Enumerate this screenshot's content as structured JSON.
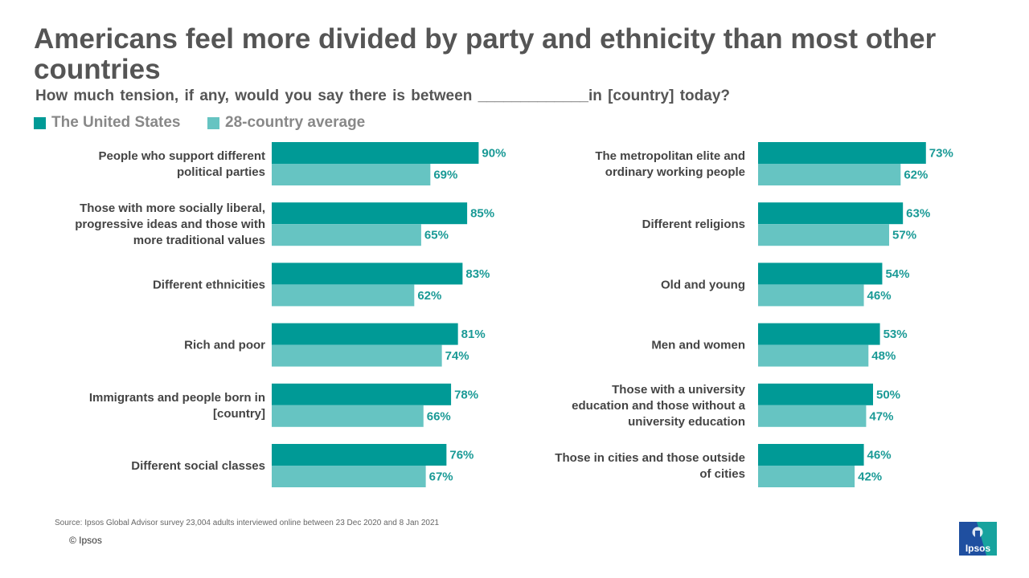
{
  "title": "Americans feel more divided by party and ethnicity than most other countries",
  "subtitle": "How much tension, if any, would you say there is between _____________in [country] today?",
  "colors": {
    "us": "#009a96",
    "average": "#66c4c2",
    "value_text": "#1a9a96"
  },
  "chart_data": {
    "type": "bar",
    "orientation": "horizontal",
    "unit": "%",
    "xlim": [
      0,
      100
    ],
    "grid": false,
    "legend": "top-left",
    "series_names": [
      "The United States",
      "28-country average"
    ],
    "panels": [
      {
        "categories": [
          "People who support different political parties",
          "Those with more socially liberal, progressive ideas and those with more traditional values",
          "Different ethnicities",
          "Rich and poor",
          "Immigrants and people born in [country]",
          "Different social classes"
        ],
        "label_lines": [
          [
            "People who support different",
            "political parties"
          ],
          [
            "Those with more socially liberal,",
            "progressive ideas and those with",
            "more traditional values"
          ],
          [
            "Different ethnicities"
          ],
          [
            "Rich and poor"
          ],
          [
            "Immigrants and people born in",
            "[country]"
          ],
          [
            "Different social classes"
          ]
        ],
        "series": [
          {
            "name": "The United States",
            "values": [
              90,
              85,
              83,
              81,
              78,
              76
            ]
          },
          {
            "name": "28-country average",
            "values": [
              69,
              65,
              62,
              74,
              66,
              67
            ]
          }
        ]
      },
      {
        "categories": [
          "The metropolitan elite and ordinary working people",
          "Different religions",
          "Old and young",
          "Men and women",
          "Those with a university education and those without a university education",
          "Those in cities and those outside of cities"
        ],
        "label_lines": [
          [
            "The metropolitan elite and",
            "ordinary working people"
          ],
          [
            "Different religions"
          ],
          [
            "Old and young"
          ],
          [
            "Men and women"
          ],
          [
            "Those with a university",
            "education and those without a",
            "university education"
          ],
          [
            "Those in cities and those outside",
            "of cities"
          ]
        ],
        "series": [
          {
            "name": "The United States",
            "values": [
              73,
              63,
              54,
              53,
              50,
              46
            ]
          },
          {
            "name": "28-country average",
            "values": [
              62,
              57,
              46,
              48,
              47,
              42
            ]
          }
        ]
      }
    ]
  },
  "source": "Source: Ipsos Global Advisor survey 23,004 adults interviewed online between 23 Dec 2020 and 8 Jan 2021",
  "copyright": "© Ipsos",
  "logo_text": "Ipsos"
}
